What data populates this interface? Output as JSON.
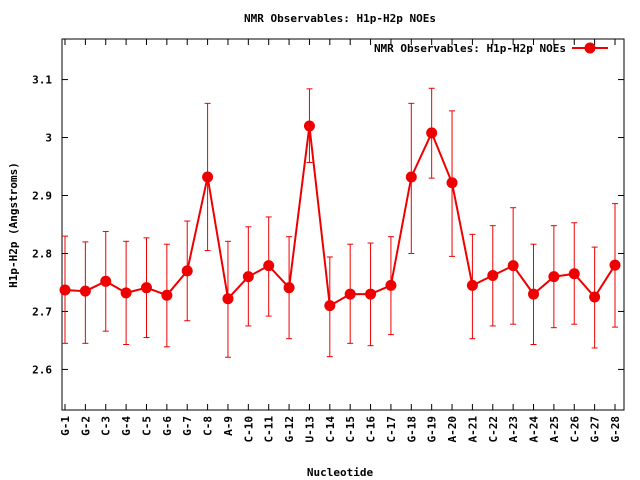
{
  "chart_data": {
    "type": "line",
    "title": "NMR Observables: H1p-H2p NOEs",
    "xlabel": "Nucleotide",
    "ylabel": "H1p-H2p (Angstroms)",
    "ylim": [
      2.53,
      3.17
    ],
    "yticks": [
      2.6,
      2.7,
      2.8,
      2.9,
      3.0,
      3.1
    ],
    "ytick_labels": [
      "2.6",
      "2.7",
      "2.8",
      "2.9",
      "3",
      "3.1"
    ],
    "legend": {
      "label": "NMR Observables: H1p-H2p NOEs",
      "position": "top-right"
    },
    "color": "#ee0000",
    "categories": [
      "G-1",
      "G-2",
      "C-3",
      "G-4",
      "C-5",
      "G-6",
      "G-7",
      "C-8",
      "A-9",
      "C-10",
      "C-11",
      "G-12",
      "U-13",
      "C-14",
      "C-15",
      "C-16",
      "C-17",
      "G-18",
      "G-19",
      "A-20",
      "A-21",
      "C-22",
      "A-23",
      "A-24",
      "A-25",
      "C-26",
      "G-27",
      "G-28"
    ],
    "series": [
      {
        "name": "NMR Observables: H1p-H2p NOEs",
        "values": [
          2.737,
          2.735,
          2.752,
          2.732,
          2.741,
          2.728,
          2.77,
          2.932,
          2.722,
          2.76,
          2.779,
          2.741,
          3.02,
          2.71,
          2.73,
          2.73,
          2.745,
          2.932,
          3.008,
          2.922,
          2.745,
          2.762,
          2.779,
          2.73,
          2.76,
          2.765,
          2.725,
          2.78
        ],
        "lower": [
          2.645,
          2.645,
          2.666,
          2.643,
          2.655,
          2.639,
          2.684,
          2.805,
          2.621,
          2.675,
          2.692,
          2.653,
          2.957,
          2.622,
          2.645,
          2.641,
          2.66,
          2.8,
          2.93,
          2.795,
          2.653,
          2.675,
          2.678,
          2.643,
          2.672,
          2.678,
          2.637,
          2.673
        ],
        "upper": [
          2.83,
          2.82,
          2.838,
          2.821,
          2.827,
          2.816,
          2.856,
          3.059,
          2.821,
          2.846,
          2.863,
          2.829,
          3.084,
          2.794,
          2.816,
          2.818,
          2.829,
          3.059,
          3.085,
          3.046,
          2.833,
          2.848,
          2.879,
          2.816,
          2.848,
          2.853,
          2.811,
          2.886
        ]
      }
    ]
  }
}
